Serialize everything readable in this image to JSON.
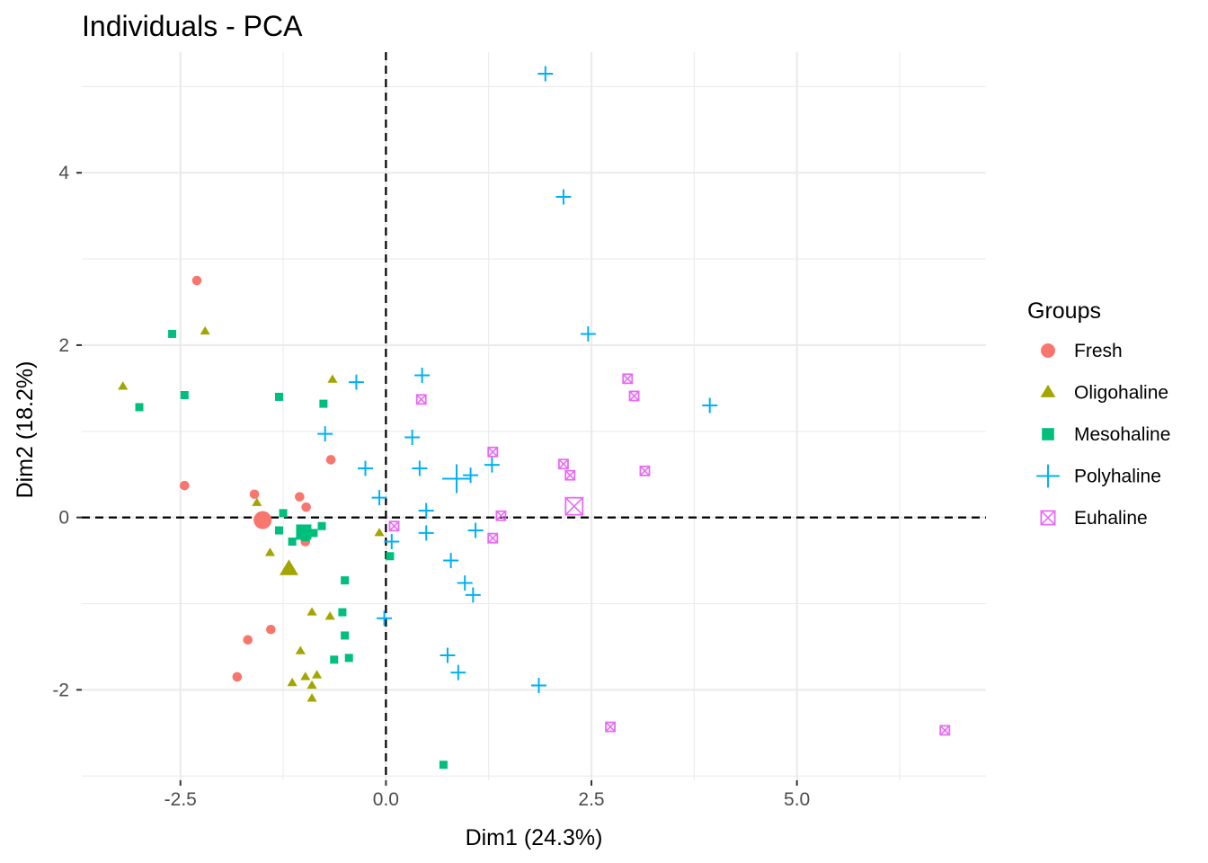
{
  "chart_data": {
    "type": "scatter",
    "title": "Individuals - PCA",
    "xlabel": "Dim1 (24.3%)",
    "ylabel": "Dim2 (18.2%)",
    "xlim": [
      -3.7,
      7.3
    ],
    "ylim": [
      -3.05,
      5.4
    ],
    "x_ticks": [
      -2.5,
      0.0,
      2.5,
      5.0
    ],
    "x_tick_labels": [
      "-2.5",
      "0.0",
      "2.5",
      "5.0"
    ],
    "y_ticks": [
      -2,
      0,
      2,
      4
    ],
    "y_tick_labels": [
      "-2",
      "0",
      "2",
      "4"
    ],
    "grid": true,
    "reference_lines": {
      "x": 0,
      "y": 0,
      "style": "dashed"
    },
    "legend": {
      "title": "Groups",
      "placement": "right"
    },
    "series": [
      {
        "name": "Fresh",
        "color": "#F8766D",
        "shape": "circle",
        "points": [
          [
            -2.3,
            2.75
          ],
          [
            -2.45,
            0.37
          ],
          [
            -1.6,
            0.27
          ],
          [
            -1.05,
            0.24
          ],
          [
            -0.97,
            0.12
          ],
          [
            -0.98,
            -0.28
          ],
          [
            -0.67,
            0.67
          ],
          [
            -1.4,
            -1.3
          ],
          [
            -1.68,
            -1.42
          ],
          [
            -1.81,
            -1.85
          ]
        ],
        "centroid": [
          -1.5,
          -0.03
        ]
      },
      {
        "name": "Oligohaline",
        "color": "#A3A500",
        "shape": "triangle",
        "points": [
          [
            -3.2,
            1.52
          ],
          [
            -2.2,
            2.16
          ],
          [
            -0.65,
            1.6
          ],
          [
            -1.57,
            0.17
          ],
          [
            -1.41,
            -0.41
          ],
          [
            -0.08,
            -0.18
          ],
          [
            -0.9,
            -1.1
          ],
          [
            -0.68,
            -1.15
          ],
          [
            -1.04,
            -1.55
          ],
          [
            -1.14,
            -1.92
          ],
          [
            -0.98,
            -1.85
          ],
          [
            -0.84,
            -1.83
          ],
          [
            -0.9,
            -1.95
          ],
          [
            -0.9,
            -2.1
          ]
        ],
        "centroid": [
          -1.18,
          -0.6
        ]
      },
      {
        "name": "Mesohaline",
        "color": "#00BF7D",
        "shape": "square",
        "points": [
          [
            -2.6,
            2.13
          ],
          [
            -2.45,
            1.42
          ],
          [
            -3.0,
            1.28
          ],
          [
            -1.3,
            1.4
          ],
          [
            -0.76,
            1.32
          ],
          [
            -1.25,
            0.05
          ],
          [
            -1.3,
            -0.15
          ],
          [
            -1.14,
            -0.28
          ],
          [
            -0.98,
            -0.23
          ],
          [
            -0.88,
            -0.18
          ],
          [
            -0.78,
            -0.1
          ],
          [
            0.05,
            -0.45
          ],
          [
            -0.5,
            -0.73
          ],
          [
            -0.53,
            -1.1
          ],
          [
            -0.5,
            -1.37
          ],
          [
            -0.63,
            -1.65
          ],
          [
            -0.45,
            -1.63
          ],
          [
            0.7,
            -2.87
          ]
        ],
        "centroid": [
          -1.0,
          -0.17
        ]
      },
      {
        "name": "Polyhaline",
        "color": "#00B0F6",
        "shape": "plus",
        "points": [
          [
            1.94,
            5.15
          ],
          [
            2.16,
            3.72
          ],
          [
            2.46,
            2.13
          ],
          [
            3.94,
            1.3
          ],
          [
            0.44,
            1.65
          ],
          [
            -0.36,
            1.57
          ],
          [
            -0.74,
            0.97
          ],
          [
            0.32,
            0.93
          ],
          [
            -0.25,
            0.57
          ],
          [
            0.41,
            0.57
          ],
          [
            1.03,
            0.49
          ],
          [
            1.29,
            0.61
          ],
          [
            -0.08,
            0.23
          ],
          [
            0.49,
            0.08
          ],
          [
            0.07,
            -0.28
          ],
          [
            0.49,
            -0.18
          ],
          [
            1.09,
            -0.15
          ],
          [
            0.79,
            -0.5
          ],
          [
            0.96,
            -0.76
          ],
          [
            1.06,
            -0.9
          ],
          [
            -0.02,
            -1.17
          ],
          [
            0.75,
            -1.6
          ],
          [
            0.88,
            -1.8
          ],
          [
            1.86,
            -1.95
          ]
        ],
        "centroid": [
          0.86,
          0.45
        ]
      },
      {
        "name": "Euhaline",
        "color": "#E76BF3",
        "shape": "square-x",
        "points": [
          [
            0.43,
            1.37
          ],
          [
            2.94,
            1.61
          ],
          [
            3.02,
            1.41
          ],
          [
            1.3,
            0.76
          ],
          [
            2.16,
            0.62
          ],
          [
            2.24,
            0.49
          ],
          [
            3.15,
            0.54
          ],
          [
            1.4,
            0.02
          ],
          [
            0.1,
            -0.1
          ],
          [
            1.3,
            -0.24
          ],
          [
            2.73,
            -2.43
          ],
          [
            6.8,
            -2.47
          ]
        ],
        "centroid": [
          2.29,
          0.13
        ]
      }
    ]
  }
}
